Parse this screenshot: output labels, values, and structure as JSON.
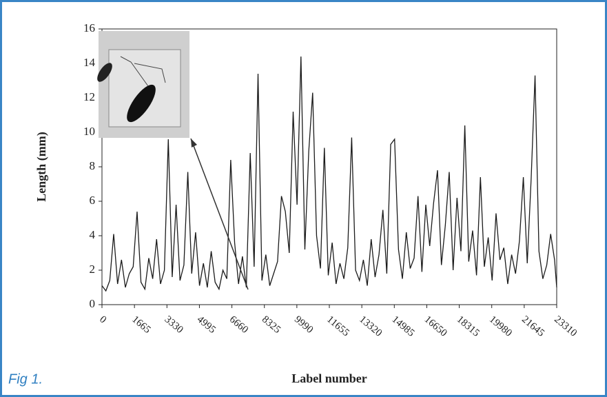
{
  "chart_data": {
    "type": "line",
    "caption": "Fig 1.",
    "xlabel": "Label number",
    "ylabel": "Length (mm)",
    "x": [
      0,
      200,
      400,
      600,
      800,
      1000,
      1200,
      1400,
      1600,
      1800,
      2000,
      2200,
      2400,
      2600,
      2800,
      3000,
      3200,
      3400,
      3600,
      3800,
      4000,
      4200,
      4400,
      4600,
      4800,
      5000,
      5200,
      5400,
      5600,
      5800,
      6000,
      6200,
      6400,
      6600,
      6800,
      7000,
      7200,
      7400,
      7600,
      7800,
      8000,
      8200,
      8400,
      8600,
      8800,
      9000,
      9200,
      9400,
      9600,
      9800,
      10000,
      10200,
      10400,
      10600,
      10800,
      11000,
      11200,
      11400,
      11600,
      11800,
      12000,
      12200,
      12400,
      12600,
      12800,
      13000,
      13200,
      13400,
      13600,
      13800,
      14000,
      14200,
      14400,
      14600,
      14800,
      15000,
      15200,
      15400,
      15600,
      15800,
      16000,
      16200,
      16400,
      16600,
      16800,
      17000,
      17200,
      17400,
      17600,
      17800,
      18000,
      18200,
      18400,
      18600,
      18800,
      19000,
      19200,
      19400,
      19600,
      19800,
      20000,
      20200,
      20400,
      20600,
      20800,
      21000,
      21200,
      21400,
      21600,
      21800,
      22000,
      22200,
      22400,
      22600,
      22800,
      23000,
      23200,
      23310
    ],
    "series": [
      {
        "color": "#1a1a1a",
        "values": [
          1.1,
          0.8,
          1.4,
          4.1,
          1.2,
          2.6,
          1.0,
          1.8,
          2.2,
          5.4,
          1.3,
          0.9,
          2.7,
          1.5,
          3.8,
          1.2,
          2.0,
          9.6,
          1.6,
          5.8,
          1.4,
          2.3,
          7.7,
          1.8,
          4.2,
          1.1,
          2.4,
          1.0,
          3.1,
          1.3,
          0.9,
          2.0,
          1.5,
          8.4,
          3.6,
          1.2,
          2.8,
          1.0,
          8.8,
          2.2,
          13.4,
          1.4,
          2.9,
          1.1,
          1.8,
          2.5,
          6.3,
          5.4,
          3.0,
          11.2,
          5.8,
          14.4,
          3.2,
          8.9,
          12.3,
          4.0,
          2.1,
          9.1,
          1.7,
          3.6,
          1.2,
          2.4,
          1.5,
          3.3,
          9.7,
          2.0,
          1.4,
          2.6,
          1.1,
          3.8,
          1.6,
          2.9,
          5.5,
          1.8,
          9.3,
          9.6,
          3.2,
          1.5,
          4.2,
          2.1,
          2.7,
          6.3,
          1.9,
          5.8,
          3.4,
          5.9,
          7.8,
          2.3,
          4.6,
          7.7,
          2.0,
          6.2,
          3.1,
          10.4,
          2.5,
          4.3,
          1.7,
          7.4,
          2.2,
          3.9,
          1.4,
          5.3,
          2.6,
          3.3,
          1.2,
          2.9,
          1.8,
          3.7,
          7.4,
          2.4,
          7.3,
          13.3,
          3.1,
          1.5,
          2.3,
          4.1,
          2.6,
          1.0
        ]
      }
    ],
    "xlim": [
      0,
      23310
    ],
    "xticks": [
      0,
      1665,
      3330,
      4995,
      6660,
      8325,
      9990,
      11655,
      13320,
      14985,
      16650,
      18315,
      19980,
      21645,
      23310
    ],
    "ylim": [
      0,
      16
    ],
    "yticks": [
      0,
      2,
      4,
      6,
      8,
      10,
      12,
      14,
      16
    ]
  }
}
